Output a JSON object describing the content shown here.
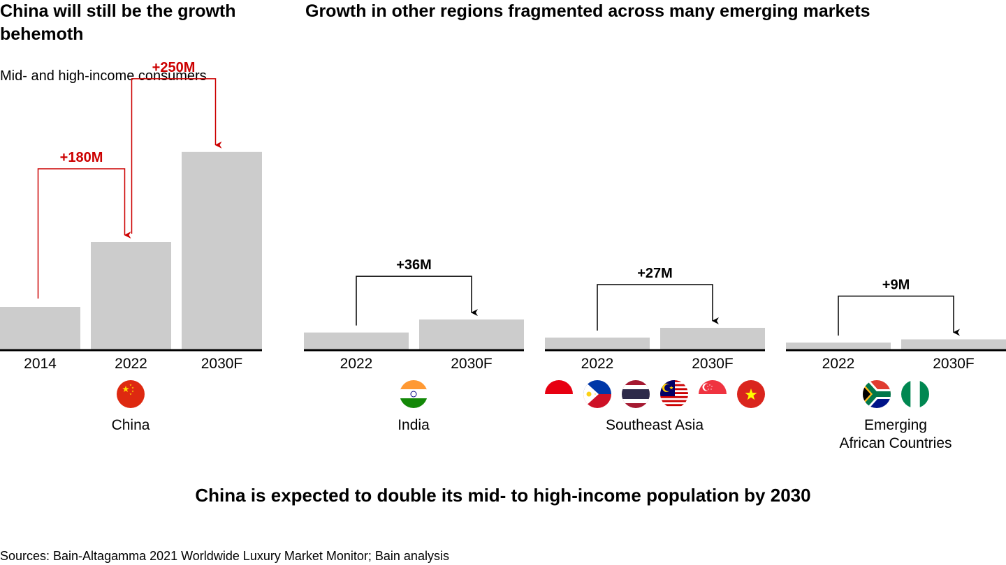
{
  "headings": {
    "left": "China will still be the growth behemoth",
    "right": "Growth in other regions fragmented across many emerging markets"
  },
  "subtitle": "Mid- and high-income consumers",
  "takeaway": "China is expected to double its mid- to high-income population by 2030",
  "source": "Sources: Bain-Altagamma 2021 Worldwide Luxury Market Monitor; Bain analysis",
  "colors": {
    "bar": "#cccccc",
    "china_arrow": "#cc0000",
    "other_arrow": "#000000",
    "axis": "#000000"
  },
  "chart_data": [
    {
      "type": "bar",
      "region": "China",
      "flags": [
        "china-flag"
      ],
      "categories": [
        "2014",
        "2022",
        "2030F"
      ],
      "values": [
        120,
        300,
        550
      ],
      "changes": [
        {
          "from": 0,
          "to": 1,
          "label": "+180M"
        },
        {
          "from": 1,
          "to": 2,
          "label": "+250M"
        }
      ],
      "ylim": [
        0,
        600
      ]
    },
    {
      "type": "bar",
      "region": "India",
      "flags": [
        "india-flag"
      ],
      "categories": [
        "2022",
        "2030F"
      ],
      "values": [
        49,
        85
      ],
      "changes": [
        {
          "from": 0,
          "to": 1,
          "label": "+36M"
        }
      ],
      "ylim": [
        0,
        600
      ]
    },
    {
      "type": "bar",
      "region": "Southeast Asia",
      "flags": [
        "indonesia-flag",
        "philippines-flag",
        "thailand-flag",
        "malaysia-flag",
        "singapore-flag",
        "vietnam-flag"
      ],
      "categories": [
        "2022",
        "2030F"
      ],
      "values": [
        35,
        62
      ],
      "changes": [
        {
          "from": 0,
          "to": 1,
          "label": "+27M"
        }
      ],
      "ylim": [
        0,
        600
      ]
    },
    {
      "type": "bar",
      "region": "Emerging African Countries",
      "region_lines": [
        "Emerging",
        "African Countries"
      ],
      "flags": [
        "south-africa-flag",
        "nigeria-flag"
      ],
      "categories": [
        "2022",
        "2030F"
      ],
      "values": [
        21,
        30
      ],
      "changes": [
        {
          "from": 0,
          "to": 1,
          "label": "+9M"
        }
      ],
      "ylim": [
        0,
        600
      ]
    }
  ]
}
